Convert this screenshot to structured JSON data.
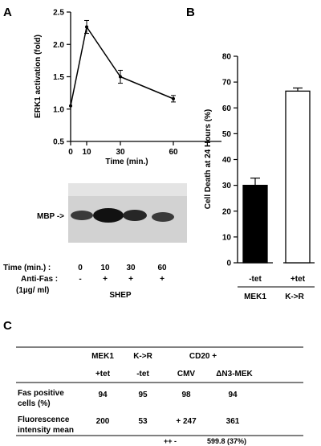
{
  "panels": {
    "a": "A",
    "b": "B",
    "c": "C"
  },
  "chart_data": [
    {
      "type": "line",
      "panel": "A",
      "ylabel": "ERK1  activation  (fold)",
      "xlabel": "Time   (min.)",
      "ylim": [
        0.5,
        2.5
      ],
      "yticks": [
        "0.5",
        "1.0",
        "1.5",
        "2.0",
        "2.5"
      ],
      "xticks": [
        "0",
        "10",
        "30",
        "60"
      ],
      "x_tick_values": [
        0,
        10,
        30,
        60
      ],
      "points": [
        {
          "x": 0,
          "y": 1.05,
          "err": 0
        },
        {
          "x": 10,
          "y": 2.27,
          "err": 0.1
        },
        {
          "x": 30,
          "y": 1.5,
          "err": 0.1
        },
        {
          "x": 60,
          "y": 1.16,
          "err": 0.05
        }
      ]
    },
    {
      "type": "bar",
      "panel": "B",
      "ylabel": "Cell Death at 24 Hours (%)",
      "ylim": [
        0,
        80
      ],
      "yticks": [
        "0",
        "10",
        "20",
        "30",
        "40",
        "50",
        "60",
        "70",
        "80"
      ],
      "categories": [
        "-tet",
        "+tet"
      ],
      "values": [
        30,
        66.5
      ],
      "errors": [
        2.8,
        1.2
      ],
      "fills": [
        "#000000",
        "#ffffff"
      ],
      "group_labels": [
        "MEK1",
        "K->R"
      ]
    }
  ],
  "blot": {
    "band_label": "MBP ->",
    "rows": [
      {
        "label": "Time  (min.) :",
        "values": [
          "0",
          "10",
          "30",
          "60"
        ]
      },
      {
        "label": "Anti-Fas :",
        "values": [
          "-",
          "+",
          "+",
          "+"
        ]
      },
      {
        "label": "(1µg/ ml)",
        "values": []
      }
    ],
    "cell_line": "SHEP"
  },
  "table": {
    "header_row1": [
      "MEK1",
      "K->R",
      "CD20 +"
    ],
    "header_row2": [
      "+tet",
      "-tet",
      "CMV",
      "ΔN3-MEK"
    ],
    "rows": [
      {
        "label": "Fas   positive",
        "label2": "cells   (%)",
        "values": [
          "94",
          "95",
          "98",
          "94"
        ]
      },
      {
        "label": "Fluorescence",
        "label2": "intensity   mean",
        "values": [
          "200",
          "53",
          "+ 247",
          "361"
        ]
      }
    ],
    "extra": {
      "prefix": "++  -",
      "value": "599.8  (37%)"
    }
  }
}
